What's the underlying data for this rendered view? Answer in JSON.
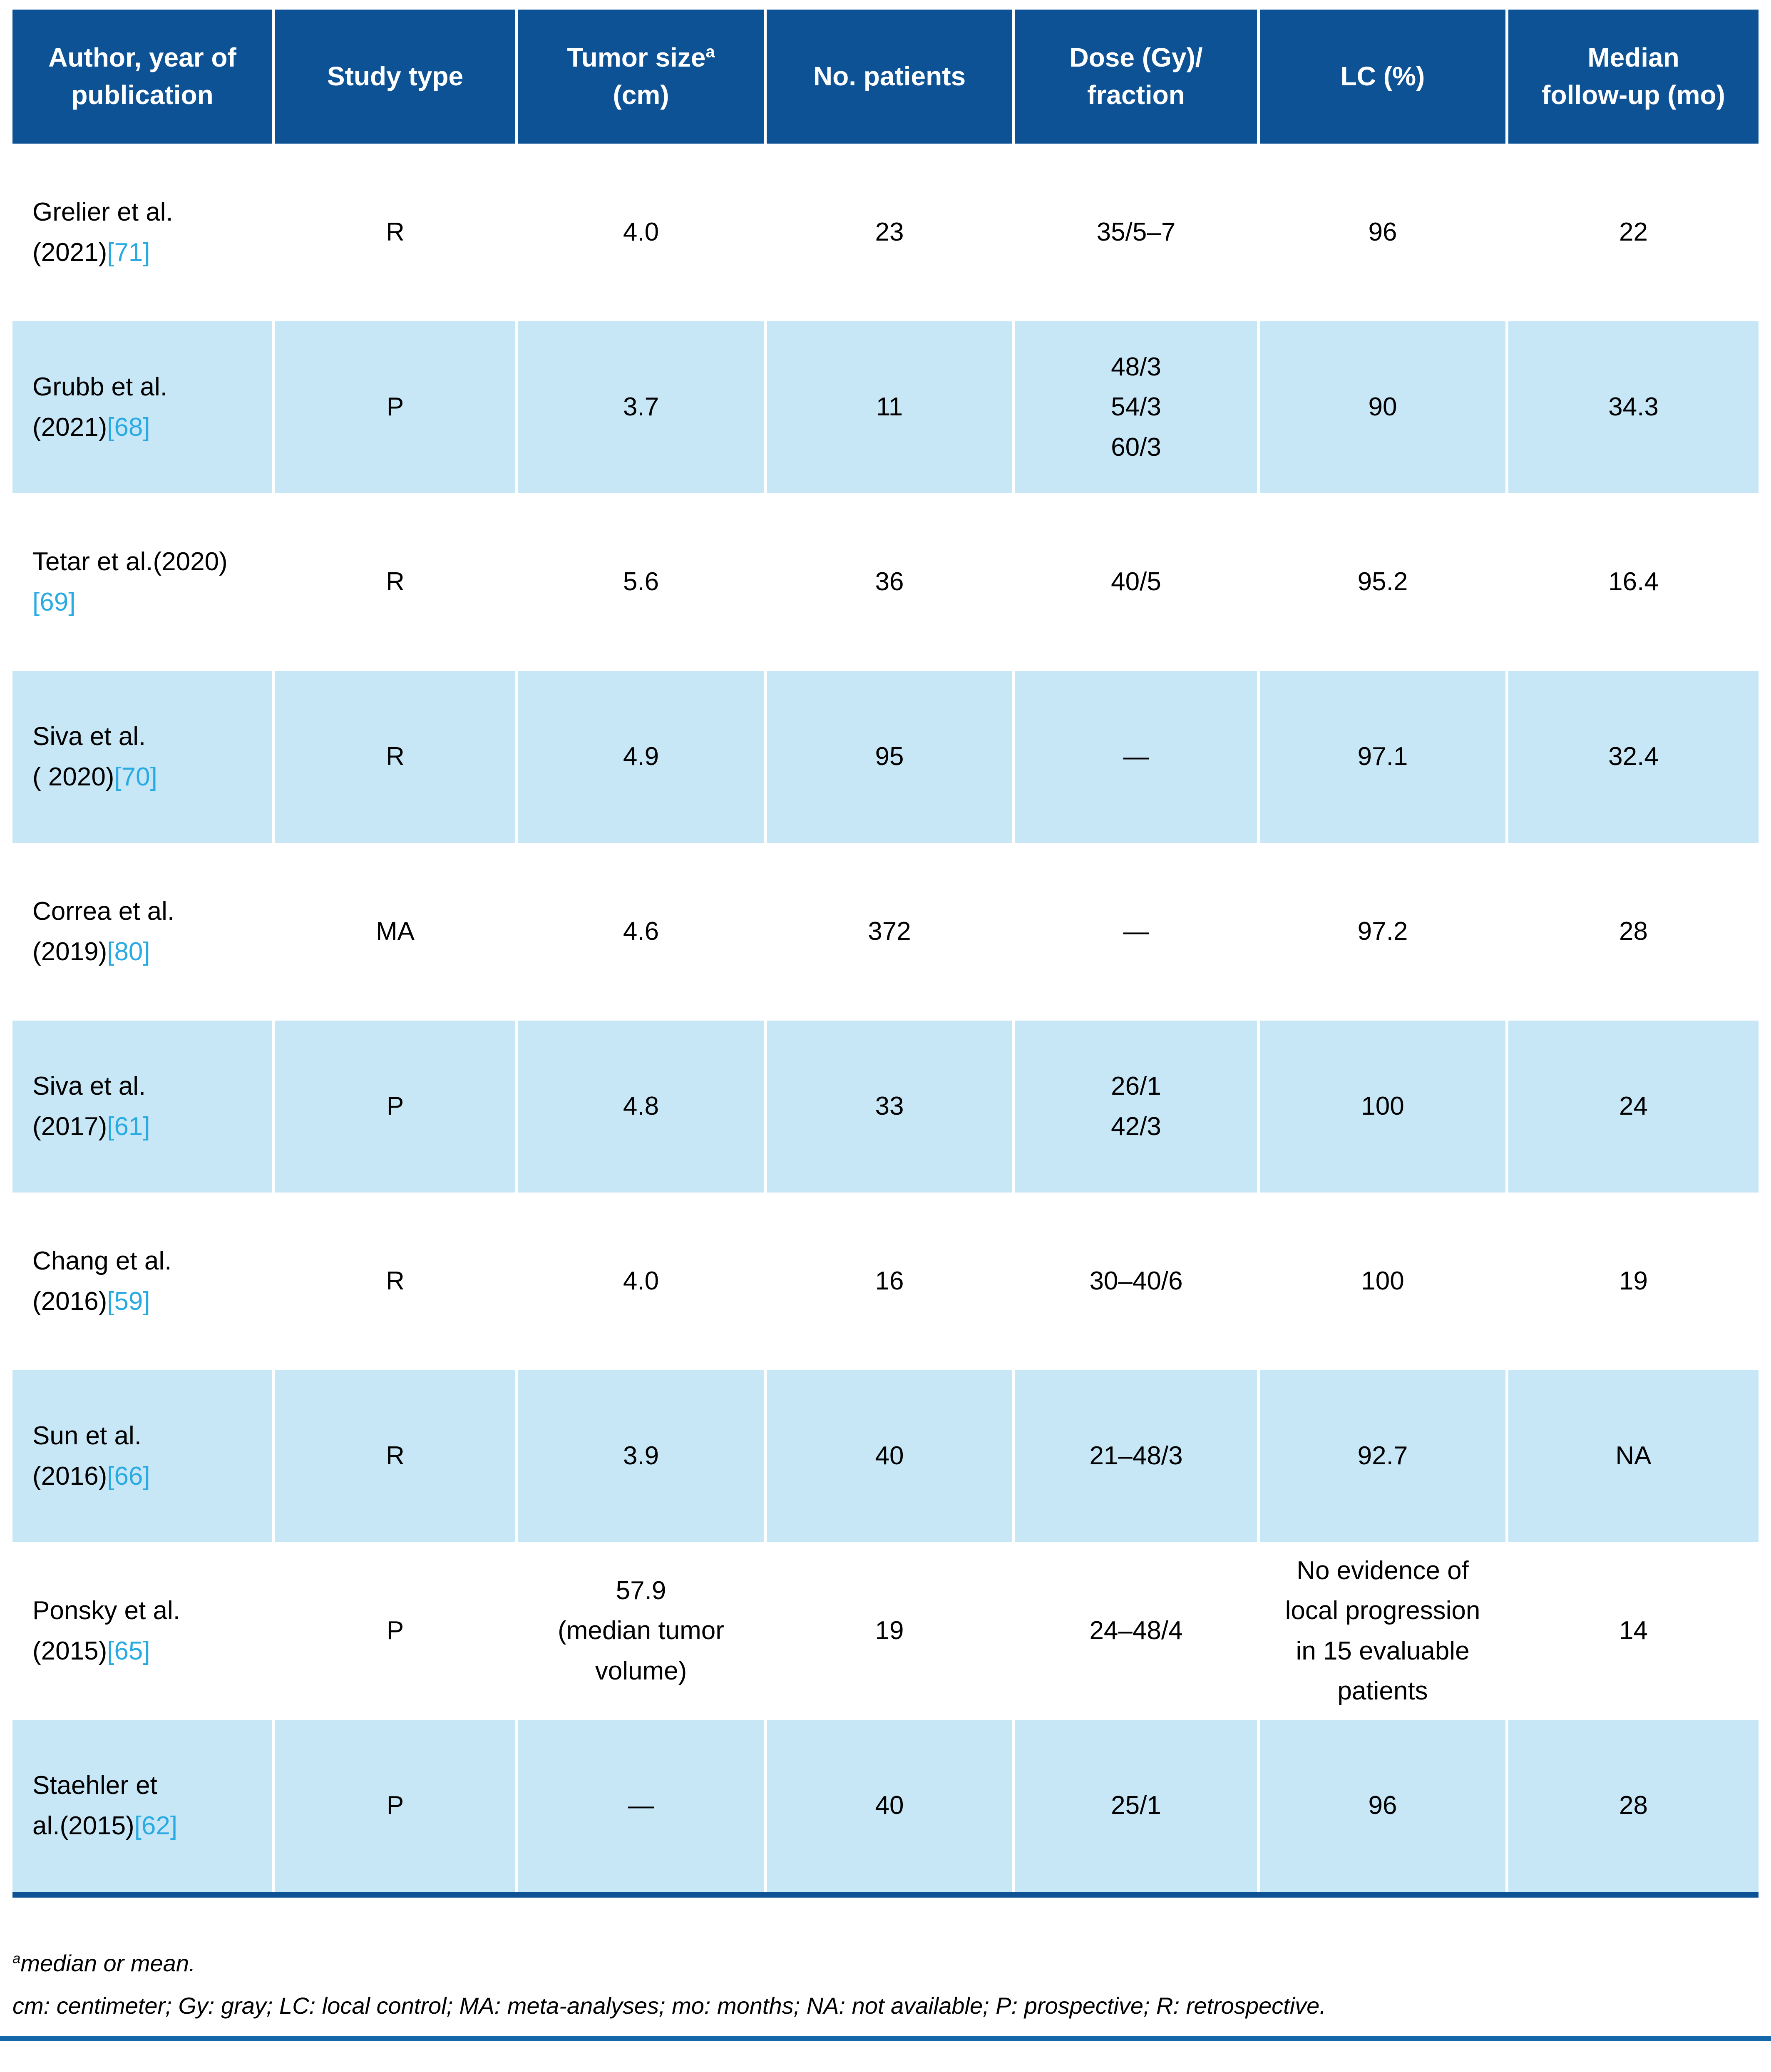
{
  "colors": {
    "header_bg": "#0D5295",
    "row_alt_bg": "#C7E6F6",
    "citation": "#29ABE2",
    "table_bottom_bar": "#0D5295",
    "bottom_rule": "#1467A8",
    "header_text": "#FFFFFF",
    "body_text": "#000000"
  },
  "table": {
    "headers": {
      "author": {
        "line1": "Author, year of",
        "line2": "publication"
      },
      "study_type": "Study type",
      "tumor_size": {
        "pre": "Tumor size",
        "sup": "a",
        "unit": "(cm)"
      },
      "patients": "No. patients",
      "dose": {
        "line1": "Dose (Gy)/",
        "line2": "fraction"
      },
      "lc": "LC (%)",
      "followup": {
        "line1": "Median",
        "line2": "follow-up (mo)"
      }
    },
    "rows": [
      {
        "author": {
          "line1": "Grelier et al.",
          "line2": "(2021)",
          "ref": "[71]"
        },
        "study_type": "R",
        "tumor_size": [
          "4.0"
        ],
        "patients": "23",
        "dose": [
          "35/5–7"
        ],
        "lc": [
          "96"
        ],
        "followup": "22"
      },
      {
        "author": {
          "line1": "Grubb et al.",
          "line2": "(2021)",
          "ref": "[68]"
        },
        "study_type": "P",
        "tumor_size": [
          "3.7"
        ],
        "patients": "11",
        "dose": [
          "48/3",
          "54/3",
          "60/3"
        ],
        "lc": [
          "90"
        ],
        "followup": "34.3"
      },
      {
        "author": {
          "line1": "Tetar et al.(2020)",
          "line2": "",
          "ref": "[69]"
        },
        "study_type": "R",
        "tumor_size": [
          "5.6"
        ],
        "patients": "36",
        "dose": [
          "40/5"
        ],
        "lc": [
          "95.2"
        ],
        "followup": "16.4"
      },
      {
        "author": {
          "line1": "Siva et al.",
          "line2": "( 2020)",
          "ref": "[70]"
        },
        "study_type": "R",
        "tumor_size": [
          "4.9"
        ],
        "patients": "95",
        "dose": [
          "—"
        ],
        "lc": [
          "97.1"
        ],
        "followup": "32.4"
      },
      {
        "author": {
          "line1": "Correa et al.",
          "line2": "(2019)",
          "ref": "[80]"
        },
        "study_type": "MA",
        "tumor_size": [
          "4.6"
        ],
        "patients": "372",
        "dose": [
          "—"
        ],
        "lc": [
          "97.2"
        ],
        "followup": "28"
      },
      {
        "author": {
          "line1": "Siva et al.",
          "line2": "(2017)",
          "ref": "[61]"
        },
        "study_type": "P",
        "tumor_size": [
          "4.8"
        ],
        "patients": "33",
        "dose": [
          "26/1",
          "42/3"
        ],
        "lc": [
          "100"
        ],
        "followup": "24"
      },
      {
        "author": {
          "line1": "Chang et al.",
          "line2": "(2016)",
          "ref": "[59]"
        },
        "study_type": "R",
        "tumor_size": [
          "4.0"
        ],
        "patients": "16",
        "dose": [
          "30–40/6"
        ],
        "lc": [
          "100"
        ],
        "followup": "19"
      },
      {
        "author": {
          "line1": "Sun et al.",
          "line2": "(2016)",
          "ref": "[66]"
        },
        "study_type": "R",
        "tumor_size": [
          "3.9"
        ],
        "patients": "40",
        "dose": [
          "21–48/3"
        ],
        "lc": [
          "92.7"
        ],
        "followup": "NA"
      },
      {
        "author": {
          "line1": "Ponsky et al.",
          "line2": "(2015)",
          "ref": "[65]"
        },
        "study_type": "P",
        "tumor_size": [
          "57.9",
          "(median tumor",
          "volume)"
        ],
        "patients": "19",
        "dose": [
          "24–48/4"
        ],
        "lc": [
          "No evidence of",
          "local progression",
          "in 15 evaluable",
          "patients"
        ],
        "followup": "14"
      },
      {
        "author": {
          "line1": "Staehler et",
          "line2": "al.(2015)",
          "ref": "[62]"
        },
        "study_type": "P",
        "tumor_size": [
          "—"
        ],
        "patients": "40",
        "dose": [
          "25/1"
        ],
        "lc": [
          "96"
        ],
        "followup": "28"
      }
    ]
  },
  "footnotes": {
    "sup": "a",
    "note_a": "median or mean.",
    "abbreviations": "cm: centimeter; Gy: gray; LC: local control; MA: meta-analyses; mo: months; NA: not available; P: prospective; R: retrospective."
  }
}
